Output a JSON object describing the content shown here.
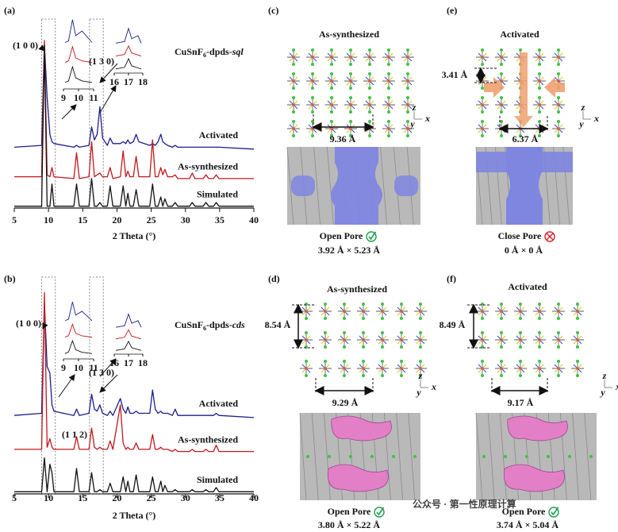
{
  "chart_data": [
    {
      "type": "line",
      "panel_label": "(a)",
      "sample": [
        "CuSnF",
        "6",
        "-dpds-",
        "sql"
      ],
      "x_label": "2 Theta (°)",
      "xlim": [
        5,
        40
      ],
      "xticks": [
        5,
        10,
        15,
        20,
        25,
        30,
        35,
        40
      ],
      "ylim": [
        0,
        100
      ],
      "annotations": [
        "(1 0 0)",
        "(1 3 0)"
      ],
      "insets": [
        {
          "xticks": [
            9,
            10,
            11
          ]
        },
        {
          "xticks": [
            16,
            17,
            18
          ]
        }
      ],
      "x": [
        5,
        9.0,
        9.4,
        9.8,
        10.2,
        10.5,
        10.8,
        13.7,
        14.1,
        14.5,
        15.9,
        16.3,
        16.7,
        17.1,
        17.5,
        17.9,
        18.6,
        19.0,
        19.4,
        20.5,
        20.9,
        21.3,
        21.6,
        21.9,
        22.4,
        22.8,
        23.2,
        24.8,
        25.2,
        25.6,
        26.0,
        26.4,
        26.7,
        27.0,
        27.4,
        28.1,
        28.5,
        28.9,
        30.6,
        31.0,
        31.4,
        32.6,
        33.0,
        33.4,
        34.1,
        34.5,
        34.9,
        40
      ],
      "series": [
        {
          "name": "Activated",
          "color": "#1a1f8a",
          "values": [
            33,
            34,
            89,
            60,
            40,
            36,
            35,
            33,
            34,
            33,
            34,
            44,
            37,
            40,
            55,
            38,
            34,
            38,
            35,
            35,
            36,
            35,
            37,
            35,
            36,
            40,
            36,
            34,
            35,
            34,
            36,
            40,
            36,
            35,
            34,
            33,
            34,
            33,
            33,
            33,
            33,
            33,
            33,
            33,
            33,
            33,
            33,
            32
          ]
        },
        {
          "name": "As-synthesized",
          "color": "#c0181c",
          "values": [
            17,
            17,
            91,
            18,
            17,
            22,
            17,
            16,
            30,
            16,
            17,
            36,
            17,
            18,
            19,
            17,
            17,
            22,
            16,
            17,
            31,
            17,
            20,
            17,
            17,
            28,
            17,
            17,
            37,
            17,
            17,
            22,
            18,
            21,
            17,
            17,
            18,
            16,
            16,
            19,
            16,
            16,
            18,
            16,
            16,
            18,
            16,
            16
          ]
        },
        {
          "name": "Simulated",
          "color": "#111111",
          "values": [
            1,
            1,
            88,
            1,
            1,
            13,
            1,
            1,
            13,
            1,
            1,
            16,
            1,
            1,
            3,
            1,
            1,
            12,
            1,
            1,
            12,
            1,
            8,
            1,
            1,
            10,
            1,
            1,
            13,
            1,
            1,
            6,
            1,
            5,
            1,
            1,
            3,
            1,
            1,
            3,
            1,
            1,
            3,
            1,
            1,
            3,
            1,
            1
          ]
        }
      ]
    },
    {
      "type": "line",
      "panel_label": "(b)",
      "sample": [
        "CuSnF",
        "6",
        "-dpds-",
        "cds"
      ],
      "x_label": "2 Theta (°)",
      "xlim": [
        5,
        40
      ],
      "xticks": [
        5,
        10,
        15,
        20,
        25,
        30,
        35,
        40
      ],
      "ylim": [
        0,
        100
      ],
      "annotations": [
        "(1 0 0)",
        "(1 3 0)",
        "(1 1 2)"
      ],
      "insets": [
        {
          "xticks": [
            9,
            10,
            11
          ]
        },
        {
          "xticks": [
            16,
            17,
            18
          ]
        }
      ],
      "x": [
        5,
        9.0,
        9.4,
        9.8,
        10.2,
        10.5,
        10.8,
        13.7,
        14.1,
        14.5,
        15.9,
        16.3,
        16.7,
        17.1,
        17.5,
        17.9,
        18.6,
        19.0,
        19.4,
        20.5,
        20.9,
        21.3,
        21.6,
        21.9,
        22.4,
        22.8,
        23.2,
        24.8,
        25.2,
        25.6,
        26.0,
        26.4,
        26.7,
        27.0,
        27.4,
        28.1,
        28.5,
        28.9,
        30.6,
        31.0,
        31.4,
        32.6,
        33.0,
        33.4,
        34.1,
        34.5,
        34.9,
        40
      ],
      "series": [
        {
          "name": "Activated",
          "color": "#1a1f8a",
          "values": [
            37,
            38,
            90,
            60,
            57,
            42,
            39,
            37,
            40,
            37,
            38,
            47,
            40,
            39,
            42,
            38,
            37,
            39,
            37,
            45,
            40,
            38,
            41,
            38,
            38,
            39,
            38,
            38,
            49,
            40,
            38,
            39,
            38,
            38,
            38,
            37,
            40,
            37,
            37,
            37,
            37,
            37,
            37,
            37,
            37,
            38,
            37,
            36
          ]
        },
        {
          "name": "As-synthesized",
          "color": "#c0181c",
          "values": [
            21,
            21,
            95,
            22,
            26,
            22,
            21,
            21,
            27,
            21,
            21,
            31,
            22,
            21,
            22,
            21,
            21,
            25,
            21,
            42,
            24,
            21,
            22,
            21,
            21,
            24,
            21,
            21,
            28,
            21,
            21,
            22,
            21,
            21,
            21,
            20,
            21,
            20,
            20,
            21,
            20,
            20,
            21,
            20,
            20,
            23,
            20,
            20
          ]
        },
        {
          "name": "Simulated",
          "color": "#111111",
          "values": [
            1,
            1,
            17,
            1,
            14,
            10,
            1,
            1,
            12,
            1,
            1,
            10,
            1,
            1,
            2,
            1,
            1,
            5,
            1,
            1,
            8,
            1,
            6,
            1,
            1,
            9,
            1,
            1,
            8,
            1,
            1,
            6,
            1,
            4,
            1,
            1,
            2,
            1,
            1,
            2,
            1,
            1,
            2,
            1,
            1,
            3,
            1,
            1
          ]
        }
      ]
    }
  ],
  "axes": [
    "z",
    "y",
    "x"
  ],
  "panels": [
    {
      "label": "(c)",
      "title": "As-synthesized",
      "dims": [
        "9.36 Å"
      ],
      "pore": "Open Pore",
      "size": "3.92 Å × 5.23 Å"
    },
    {
      "label": "(e)",
      "title": "Activated",
      "dims": [
        "3.41 Å",
        "6.37 Å"
      ],
      "pore": "Close Pore",
      "size": "0 Å × 0 Å"
    },
    {
      "label": "(d)",
      "title": "As-synthesized",
      "dims": [
        "8.54 Å",
        "9.29 Å"
      ],
      "pore": "Open Pore",
      "size": "3.80 Å × 5.22 Å"
    },
    {
      "label": "(f)",
      "title": "Activated",
      "dims": [
        "8.49 Å",
        "9.17 Å"
      ],
      "pore": "Open Pore",
      "size": "3.74 Å × 5.04 Å"
    }
  ],
  "watermark": "公众号 · 第一性原理计算"
}
